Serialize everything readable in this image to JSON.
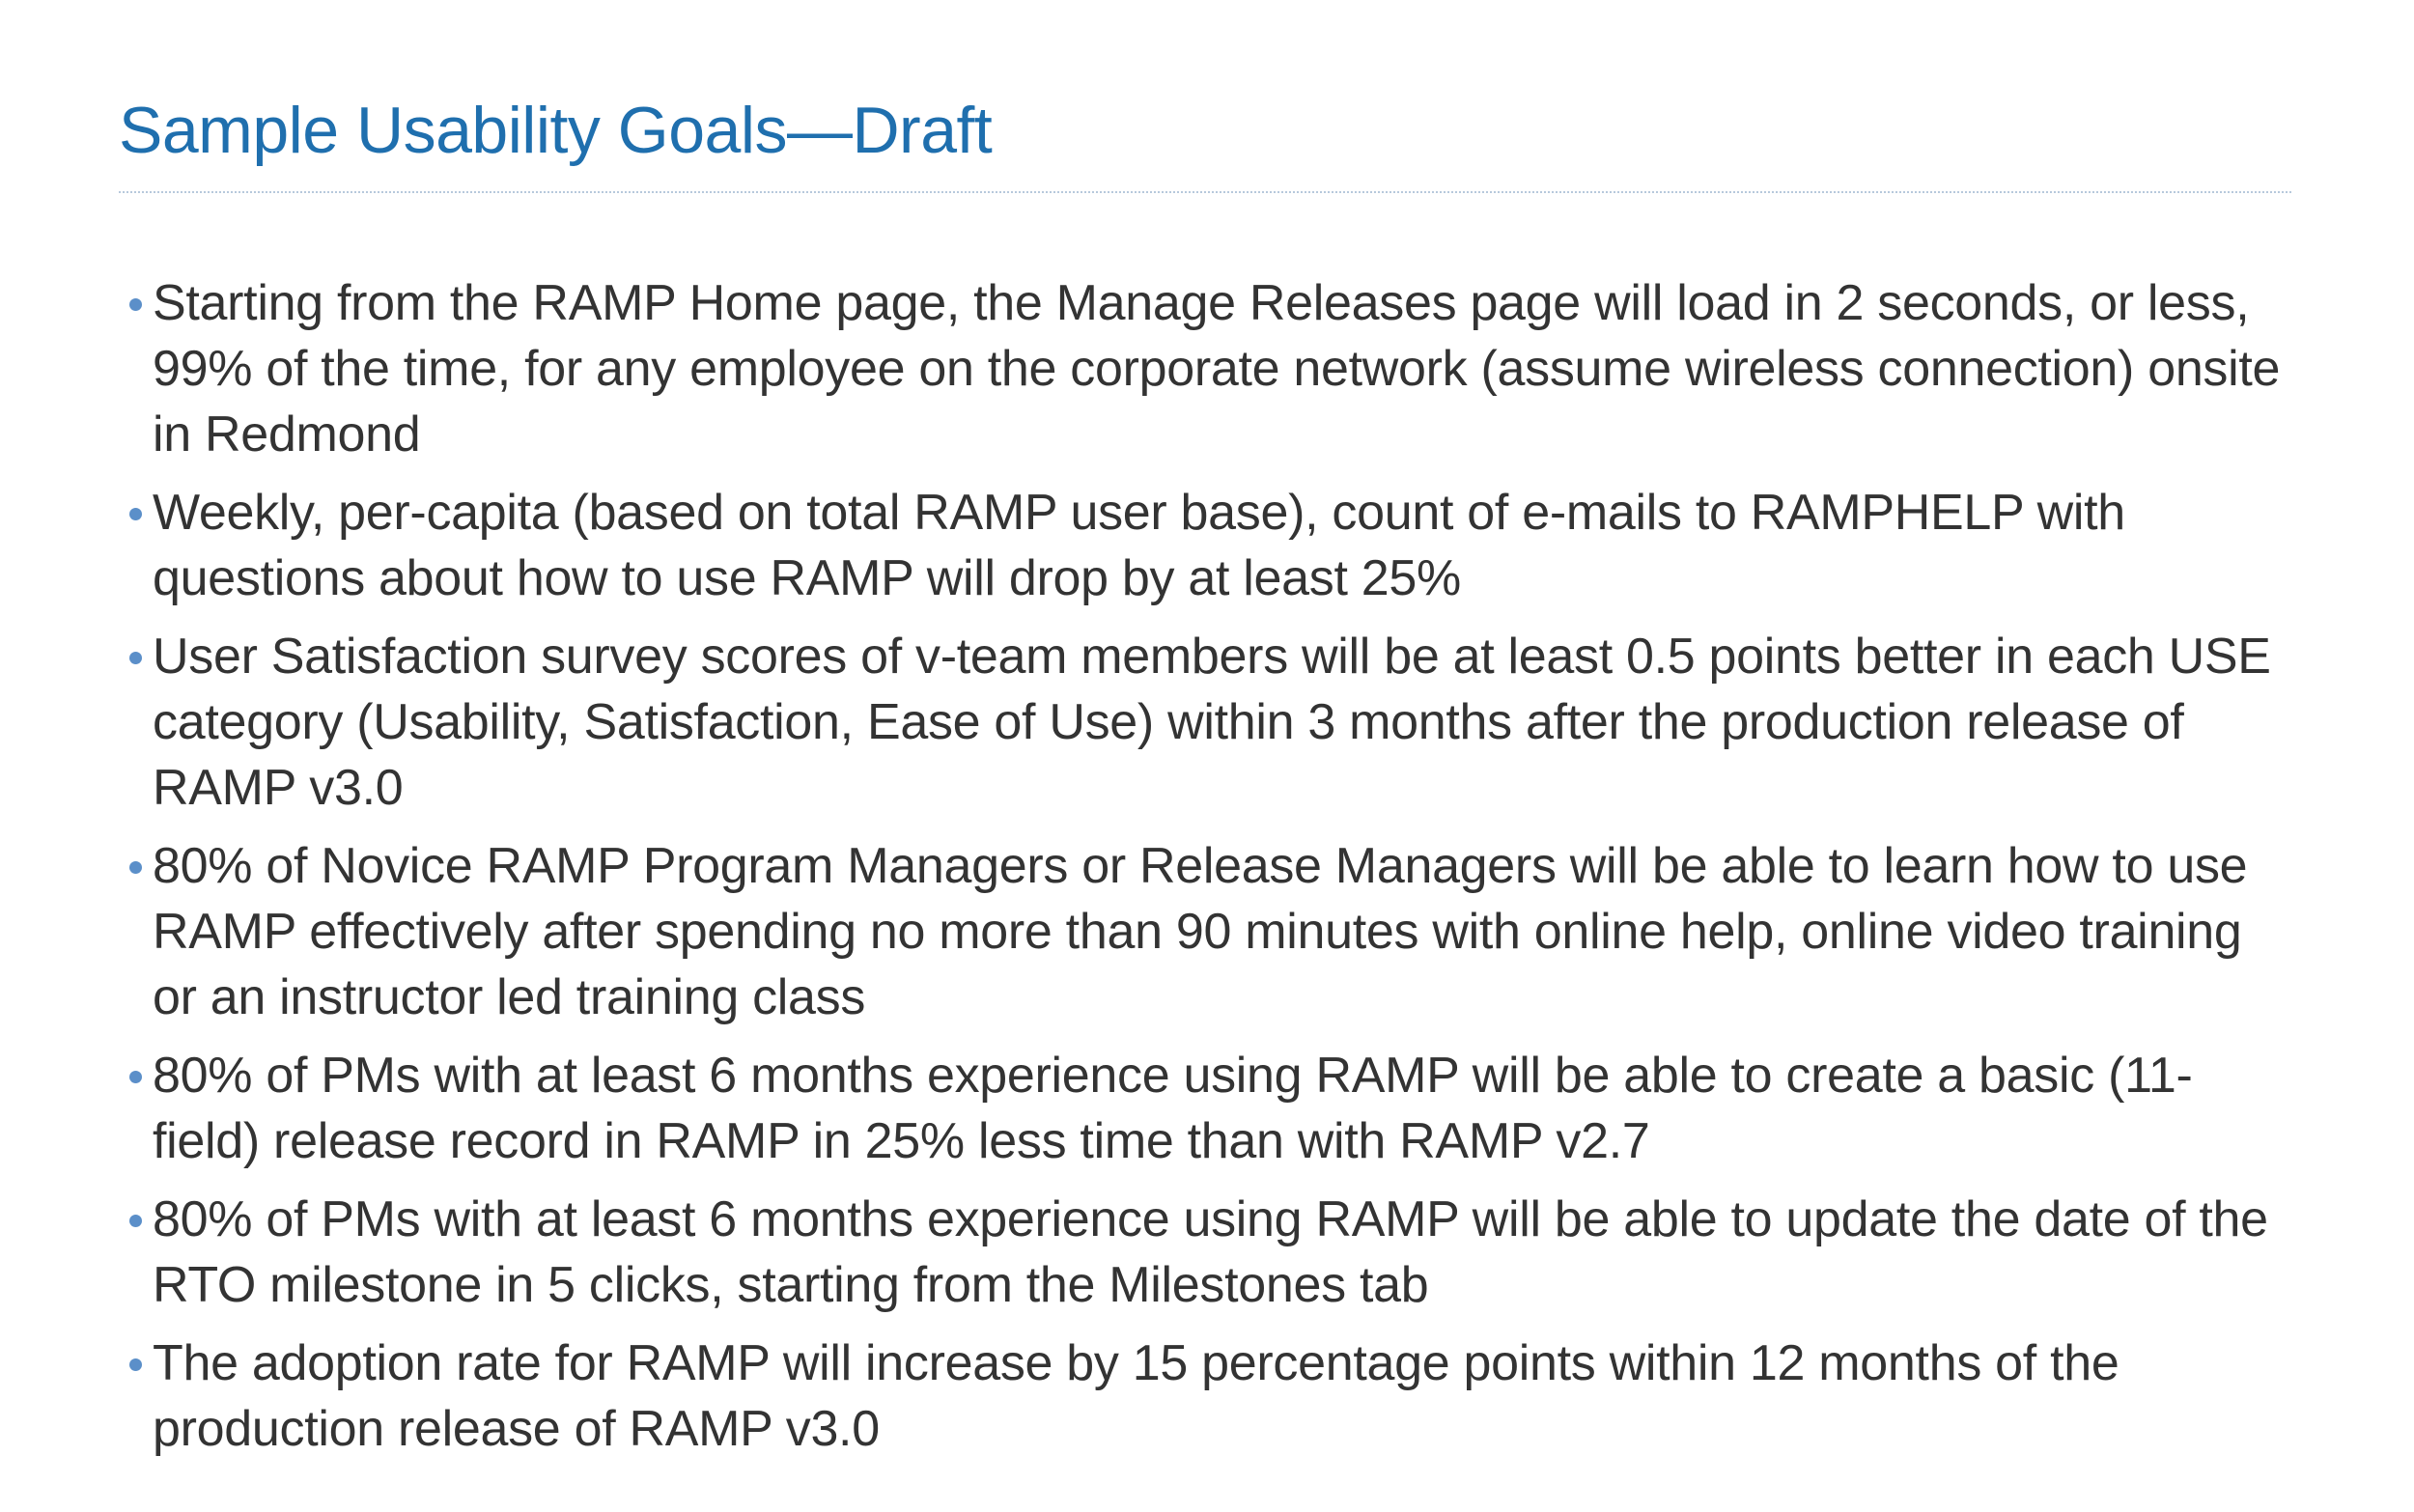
{
  "slide": {
    "title": "Sample Usability Goals—Draft",
    "accent_color": "#1f6fae",
    "bullet_color": "#5b8fc9",
    "bullets": [
      "Starting from the RAMP Home page, the Manage Releases page will load in 2 seconds, or less, 99% of the time, for any employee on the corporate network (assume wireless connection) onsite in Redmond",
      "Weekly, per-capita (based on total RAMP user base), count of e-mails to RAMPHELP with questions about how to use RAMP will drop by at least 25%",
      "User Satisfaction survey scores of v-team members will be at least 0.5 points better in each USE category (Usability, Satisfaction, Ease of Use) within 3 months after the production release of RAMP v3.0",
      "80% of Novice RAMP Program Managers or Release Managers will be able to learn how to use RAMP effectively after spending no more than 90 minutes with online help, online video training or an instructor led training class",
      "80% of PMs with at least 6 months experience using RAMP will be able to create a basic (11-field) release record in RAMP in 25% less time than with RAMP v2.7",
      "80% of PMs with at least 6 months experience using RAMP will be able to update the date of the RTO milestone in 5 clicks, starting from the Milestones tab",
      "The adoption rate for RAMP will increase by 15 percentage points within 12 months of the production release of RAMP v3.0"
    ]
  }
}
